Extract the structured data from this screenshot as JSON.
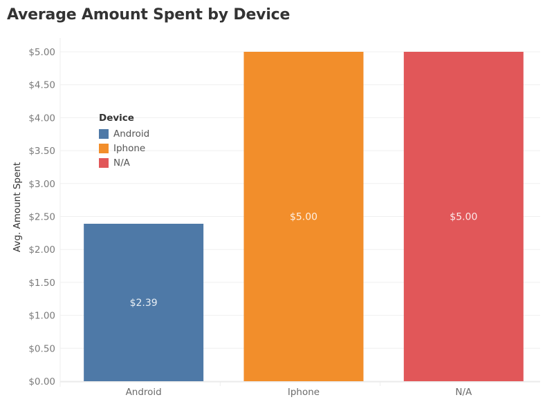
{
  "chart_data": {
    "type": "bar",
    "title": "Average Amount Spent by Device",
    "xlabel": "",
    "ylabel": "Avg. Amount Spent",
    "categories": [
      "Android",
      "Iphone",
      "N/A"
    ],
    "values": [
      2.39,
      5.0,
      5.0
    ],
    "data_labels": [
      "$2.39",
      "$5.00",
      "$5.00"
    ],
    "colors": [
      "#4e79a7",
      "#f28e2b",
      "#e15759"
    ],
    "ylim": [
      0,
      5
    ],
    "yticks": [
      0,
      0.5,
      1,
      1.5,
      2,
      2.5,
      3,
      3.5,
      4,
      4.5,
      5
    ],
    "ytick_labels": [
      "$0.00",
      "$0.50",
      "$1.00",
      "$1.50",
      "$2.00",
      "$2.50",
      "$3.00",
      "$3.50",
      "$4.00",
      "$4.50",
      "$5.00"
    ],
    "grid": true,
    "legend": {
      "title": "Device",
      "position": "top-left",
      "entries": [
        {
          "label": "Android",
          "color": "#4e79a7"
        },
        {
          "label": "Iphone",
          "color": "#f28e2b"
        },
        {
          "label": "N/A",
          "color": "#e15759"
        }
      ]
    }
  }
}
